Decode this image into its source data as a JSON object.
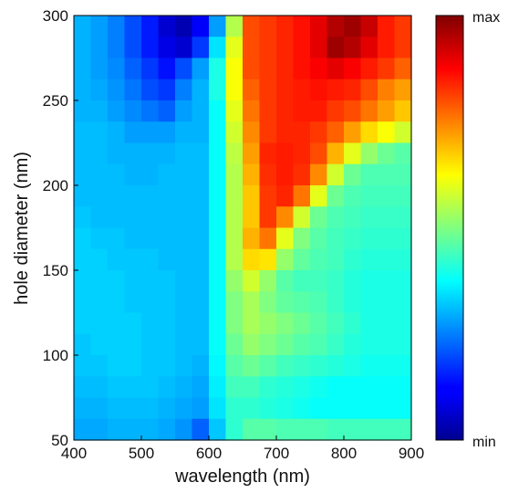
{
  "chart_data": {
    "type": "heatmap",
    "title": "",
    "xlabel": "wavelength (nm)",
    "ylabel": "hole diameter (nm)",
    "xlim": [
      400,
      900
    ],
    "ylim": [
      50,
      300
    ],
    "x_ticks": [
      "400",
      "500",
      "600",
      "700",
      "800",
      "900"
    ],
    "y_ticks": [
      "50",
      "100",
      "150",
      "200",
      "250",
      "300"
    ],
    "colorbar": {
      "max_label": "max",
      "min_label": "min",
      "colormap": "jet"
    },
    "x_columns": [
      400,
      425,
      450,
      475,
      500,
      525,
      550,
      575,
      600,
      625,
      650,
      675,
      700,
      725,
      750,
      775,
      800,
      825,
      850,
      875
    ],
    "y_rows": [
      300,
      287.5,
      275,
      262.5,
      250,
      237.5,
      225,
      212.5,
      200,
      187.5,
      175,
      162.5,
      150,
      137.5,
      125,
      112.5,
      100,
      87.5,
      75,
      62.5
    ],
    "values": [
      [
        0.3,
        0.28,
        0.25,
        0.2,
        0.15,
        0.08,
        0.05,
        0.12,
        0.28,
        0.55,
        0.8,
        0.82,
        0.84,
        0.86,
        0.9,
        0.95,
        0.97,
        0.93,
        0.85,
        0.82
      ],
      [
        0.3,
        0.28,
        0.25,
        0.2,
        0.15,
        0.1,
        0.08,
        0.18,
        0.35,
        0.6,
        0.8,
        0.82,
        0.84,
        0.86,
        0.9,
        0.97,
        0.95,
        0.9,
        0.85,
        0.82
      ],
      [
        0.3,
        0.28,
        0.26,
        0.22,
        0.18,
        0.14,
        0.2,
        0.28,
        0.4,
        0.62,
        0.8,
        0.82,
        0.84,
        0.86,
        0.88,
        0.9,
        0.88,
        0.85,
        0.82,
        0.78
      ],
      [
        0.3,
        0.29,
        0.27,
        0.24,
        0.2,
        0.18,
        0.25,
        0.3,
        0.4,
        0.62,
        0.78,
        0.82,
        0.84,
        0.85,
        0.86,
        0.85,
        0.84,
        0.8,
        0.75,
        0.72
      ],
      [
        0.3,
        0.3,
        0.28,
        0.26,
        0.24,
        0.22,
        0.28,
        0.3,
        0.38,
        0.6,
        0.76,
        0.82,
        0.84,
        0.85,
        0.85,
        0.82,
        0.8,
        0.76,
        0.72,
        0.68
      ],
      [
        0.31,
        0.31,
        0.3,
        0.28,
        0.28,
        0.28,
        0.3,
        0.3,
        0.38,
        0.58,
        0.74,
        0.82,
        0.84,
        0.84,
        0.82,
        0.78,
        0.72,
        0.66,
        0.62,
        0.58
      ],
      [
        0.31,
        0.31,
        0.3,
        0.3,
        0.3,
        0.3,
        0.31,
        0.31,
        0.38,
        0.56,
        0.72,
        0.84,
        0.85,
        0.84,
        0.8,
        0.7,
        0.6,
        0.52,
        0.48,
        0.46
      ],
      [
        0.31,
        0.31,
        0.31,
        0.3,
        0.3,
        0.31,
        0.31,
        0.31,
        0.38,
        0.55,
        0.7,
        0.83,
        0.85,
        0.83,
        0.74,
        0.58,
        0.48,
        0.45,
        0.45,
        0.45
      ],
      [
        0.31,
        0.31,
        0.31,
        0.31,
        0.31,
        0.31,
        0.31,
        0.31,
        0.38,
        0.55,
        0.68,
        0.82,
        0.84,
        0.76,
        0.6,
        0.48,
        0.45,
        0.44,
        0.44,
        0.44
      ],
      [
        0.32,
        0.31,
        0.31,
        0.31,
        0.31,
        0.31,
        0.31,
        0.31,
        0.38,
        0.55,
        0.68,
        0.82,
        0.74,
        0.58,
        0.48,
        0.45,
        0.44,
        0.43,
        0.43,
        0.43
      ],
      [
        0.33,
        0.32,
        0.32,
        0.31,
        0.31,
        0.31,
        0.31,
        0.31,
        0.38,
        0.55,
        0.7,
        0.76,
        0.6,
        0.5,
        0.46,
        0.44,
        0.43,
        0.42,
        0.42,
        0.42
      ],
      [
        0.33,
        0.33,
        0.32,
        0.32,
        0.32,
        0.31,
        0.31,
        0.31,
        0.38,
        0.55,
        0.66,
        0.65,
        0.52,
        0.47,
        0.45,
        0.44,
        0.42,
        0.41,
        0.41,
        0.41
      ],
      [
        0.33,
        0.33,
        0.33,
        0.32,
        0.32,
        0.32,
        0.31,
        0.31,
        0.38,
        0.52,
        0.58,
        0.52,
        0.46,
        0.44,
        0.44,
        0.43,
        0.41,
        0.4,
        0.4,
        0.4
      ],
      [
        0.33,
        0.33,
        0.33,
        0.32,
        0.32,
        0.32,
        0.31,
        0.31,
        0.38,
        0.5,
        0.54,
        0.5,
        0.47,
        0.46,
        0.45,
        0.43,
        0.41,
        0.4,
        0.4,
        0.4
      ],
      [
        0.33,
        0.33,
        0.33,
        0.33,
        0.32,
        0.32,
        0.31,
        0.31,
        0.38,
        0.5,
        0.54,
        0.52,
        0.5,
        0.48,
        0.46,
        0.44,
        0.42,
        0.4,
        0.4,
        0.4
      ],
      [
        0.32,
        0.33,
        0.33,
        0.33,
        0.32,
        0.32,
        0.31,
        0.31,
        0.38,
        0.48,
        0.52,
        0.5,
        0.48,
        0.46,
        0.45,
        0.43,
        0.41,
        0.4,
        0.4,
        0.4
      ],
      [
        0.32,
        0.32,
        0.33,
        0.33,
        0.32,
        0.32,
        0.31,
        0.3,
        0.37,
        0.46,
        0.48,
        0.46,
        0.44,
        0.43,
        0.42,
        0.41,
        0.4,
        0.39,
        0.39,
        0.39
      ],
      [
        0.31,
        0.31,
        0.32,
        0.32,
        0.32,
        0.31,
        0.3,
        0.29,
        0.36,
        0.44,
        0.44,
        0.42,
        0.41,
        0.4,
        0.39,
        0.38,
        0.38,
        0.38,
        0.38,
        0.38
      ],
      [
        0.3,
        0.3,
        0.31,
        0.31,
        0.31,
        0.3,
        0.29,
        0.28,
        0.35,
        0.42,
        0.42,
        0.41,
        0.4,
        0.39,
        0.38,
        0.38,
        0.38,
        0.38,
        0.38,
        0.38
      ],
      [
        0.29,
        0.29,
        0.3,
        0.3,
        0.3,
        0.29,
        0.27,
        0.22,
        0.32,
        0.42,
        0.46,
        0.46,
        0.45,
        0.45,
        0.45,
        0.44,
        0.44,
        0.44,
        0.44,
        0.44
      ]
    ]
  }
}
